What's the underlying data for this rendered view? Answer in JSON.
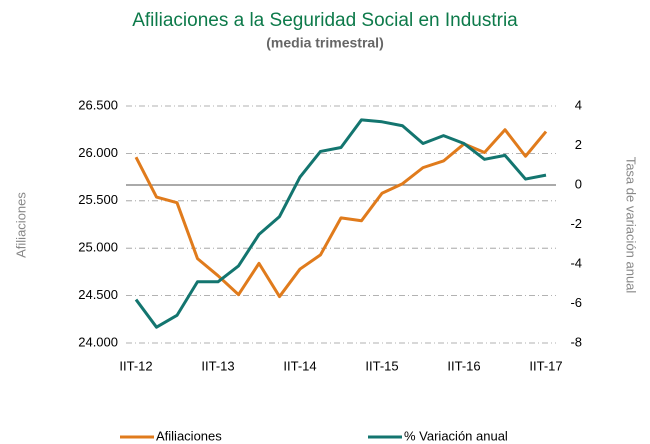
{
  "chart_data": {
    "type": "line",
    "title": "Afiliaciones a la Seguridad Social en Industria",
    "subtitle": "(media trimestral)",
    "y_label": "Afiliaciones",
    "y2_label": "Tasa de variación anual",
    "categories": [
      "IIT-12",
      null,
      null,
      null,
      "IIT-13",
      null,
      null,
      null,
      "IIT-14",
      null,
      null,
      null,
      "IIT-15",
      null,
      null,
      null,
      "IIT-16",
      null,
      null,
      null,
      "IIT-17"
    ],
    "series": [
      {
        "name": "Afiliaciones",
        "color": "#e07b1c",
        "axis": "y",
        "values": [
          25960,
          25540,
          25480,
          24890,
          24710,
          24510,
          24840,
          24490,
          24780,
          24930,
          25320,
          25290,
          25580,
          25680,
          25850,
          25920,
          26100,
          26010,
          26250,
          25970,
          26230
        ]
      },
      {
        "name": "% Variación anual",
        "color": "#13756f",
        "axis": "y2",
        "values": [
          -5.8,
          -7.2,
          -6.6,
          -4.9,
          -4.9,
          -4.1,
          -2.5,
          -1.6,
          0.4,
          1.7,
          1.9,
          3.3,
          3.2,
          3.0,
          2.1,
          2.5,
          2.1,
          1.3,
          1.5,
          0.3,
          0.5
        ]
      }
    ],
    "ylim": [
      24000,
      26500
    ],
    "yticks": [
      {
        "value": 24000,
        "label": "24.000"
      },
      {
        "value": 24500,
        "label": "24.500"
      },
      {
        "value": 25000,
        "label": "25.000"
      },
      {
        "value": 25500,
        "label": "25.500"
      },
      {
        "value": 26000,
        "label": "26.000"
      },
      {
        "value": 26500,
        "label": "26.500"
      }
    ],
    "y2lim": [
      -8,
      4
    ],
    "y2ticks": [
      -8,
      -6,
      -4,
      -2,
      0,
      2,
      4
    ],
    "grid": true,
    "legend": "bottom"
  }
}
